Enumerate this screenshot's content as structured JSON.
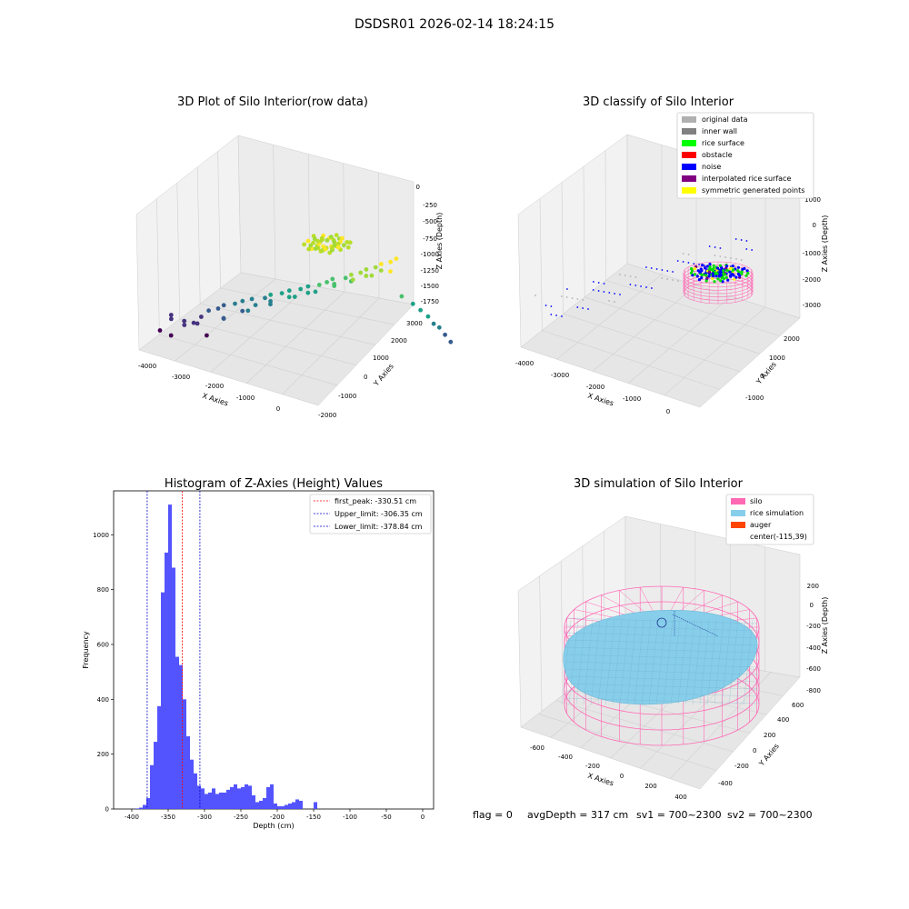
{
  "figure_title": "DSDSR01 2026-02-14 18:24:15",
  "footer": {
    "flag": "flag = 0",
    "avg": "avgDepth = 317 cm",
    "sv1": "sv1 = 700~2300",
    "sv2": "sv2 = 700~2300"
  },
  "colors": {
    "bars": "#4b4bff",
    "first_peak": "#ff0000",
    "limits": "#0000cc",
    "silo": "#ff69b4",
    "rice": "#87ceeb",
    "auger": "#ff4500",
    "pane": "#f2f2f2"
  },
  "chart_data": [
    {
      "type": "scatter",
      "title": "3D Plot of Silo Interior(row data)",
      "xlabel": "X Axies",
      "ylabel": "Y Axies",
      "zlabel": "Z Axies (Depth)",
      "x_ticks": [
        "-4000",
        "-3000",
        "-2000",
        "-1000",
        "0"
      ],
      "y_ticks": [
        "-2000",
        "-1000",
        "0",
        "1000",
        "2000",
        "3000"
      ],
      "z_ticks": [
        "0",
        "-250",
        "-500",
        "-750",
        "-1000",
        "-1250",
        "-1500",
        "-1750"
      ],
      "colormap": "viridis",
      "points": [
        [
          -4150,
          -1200,
          -1700
        ],
        [
          -4000,
          -900,
          -1550
        ],
        [
          -3900,
          -1100,
          -1450
        ],
        [
          -3700,
          -800,
          -1600
        ],
        [
          -3600,
          -1000,
          -1500
        ],
        [
          -3500,
          -700,
          -1550
        ],
        [
          -3350,
          -600,
          -1450
        ],
        [
          -3200,
          -500,
          -1350
        ],
        [
          -3100,
          -800,
          -1650
        ],
        [
          -3000,
          -400,
          -1300
        ],
        [
          -2900,
          -300,
          -1250
        ],
        [
          -2800,
          -500,
          -1400
        ],
        [
          -2650,
          -200,
          -1200
        ],
        [
          -2500,
          -100,
          -1150
        ],
        [
          -2400,
          -300,
          -1250
        ],
        [
          -2300,
          0,
          -1100
        ],
        [
          -2150,
          -100,
          -1150
        ],
        [
          -2000,
          100,
          -1050
        ],
        [
          -1900,
          200,
          -1000
        ],
        [
          -1800,
          0,
          -1050
        ],
        [
          -1650,
          300,
          -950
        ],
        [
          -1500,
          400,
          -900
        ],
        [
          -1400,
          200,
          -950
        ],
        [
          -1250,
          500,
          -850
        ],
        [
          -1100,
          600,
          -800
        ],
        [
          -1000,
          400,
          -850
        ],
        [
          -850,
          700,
          -750
        ],
        [
          -700,
          800,
          -700
        ],
        [
          -600,
          900,
          -650
        ],
        [
          -450,
          700,
          -700
        ],
        [
          -300,
          1000,
          -600
        ],
        [
          -200,
          1100,
          -550
        ],
        [
          -100,
          900,
          -600
        ],
        [
          0,
          1200,
          -500
        ],
        [
          100,
          1300,
          -450
        ],
        [
          200,
          1100,
          -500
        ],
        [
          300,
          1400,
          -400
        ],
        [
          400,
          1500,
          -350
        ],
        [
          500,
          1300,
          -400
        ],
        [
          600,
          1600,
          -300
        ],
        [
          700,
          1700,
          -250
        ],
        [
          -3800,
          -1300,
          -1700
        ],
        [
          -3300,
          -900,
          -1500
        ],
        [
          -2700,
          -700,
          -1350
        ],
        [
          -2200,
          -400,
          -1200
        ],
        [
          -1700,
          -200,
          -1050
        ],
        [
          -1200,
          100,
          -900
        ],
        [
          -800,
          400,
          -800
        ],
        [
          -400,
          600,
          -650
        ],
        [
          0,
          800,
          -550
        ],
        [
          400,
          1000,
          -450
        ],
        [
          800,
          1200,
          -350
        ],
        [
          1000,
          1400,
          -700
        ],
        [
          1200,
          1600,
          -800
        ],
        [
          1300,
          1800,
          -900
        ],
        [
          1400,
          2000,
          -1000
        ],
        [
          1500,
          2100,
          -1100
        ],
        [
          1600,
          2200,
          -1150
        ],
        [
          1700,
          2300,
          -1250
        ],
        [
          1800,
          2400,
          -1350
        ]
      ]
    },
    {
      "type": "scatter",
      "title": "3D classify of Silo Interior",
      "xlabel": "X Axies",
      "ylabel": "Y Axies",
      "zlabel": "Z Axies (Depth)",
      "x_ticks": [
        "-4000",
        "-3000",
        "-2000",
        "-1000",
        "0"
      ],
      "y_ticks": [
        "-1000",
        "0",
        "1000",
        "2000"
      ],
      "z_ticks": [
        "1000",
        "0",
        "-1000",
        "-2000",
        "-3000"
      ],
      "legend": [
        {
          "name": "original data",
          "color": "#b0b0b0"
        },
        {
          "name": "inner wall",
          "color": "#808080"
        },
        {
          "name": "rice surface",
          "color": "#00ff00"
        },
        {
          "name": "obstacle",
          "color": "#ff0000"
        },
        {
          "name": "noise",
          "color": "#0000ff"
        },
        {
          "name": "interpolated rice surface",
          "color": "#800080"
        },
        {
          "name": "symmetric generated points",
          "color": "#ffff00"
        }
      ]
    },
    {
      "type": "bar",
      "title": "Histogram of Z-Axies (Height) Values",
      "xlabel": "Depth (cm)",
      "ylabel": "Frequency",
      "xlim": [
        -425,
        15
      ],
      "ylim": [
        0,
        1160
      ],
      "x_ticks": [
        -400,
        -350,
        -300,
        -250,
        -200,
        -150,
        -100,
        -50,
        0
      ],
      "y_ticks": [
        0,
        200,
        400,
        600,
        800,
        1000
      ],
      "bin_start": -395,
      "bin_width": 5,
      "values": [
        2,
        5,
        15,
        40,
        160,
        245,
        375,
        790,
        935,
        1110,
        880,
        555,
        525,
        400,
        265,
        180,
        130,
        85,
        75,
        55,
        60,
        75,
        55,
        60,
        60,
        70,
        80,
        90,
        75,
        80,
        90,
        85,
        50,
        25,
        30,
        40,
        80,
        90,
        20,
        10,
        10,
        15,
        20,
        25,
        35,
        30,
        0,
        0,
        0,
        25
      ],
      "vlines": [
        {
          "name": "first_peak: -330.51 cm",
          "x": -330.51,
          "color": "#ff0000"
        },
        {
          "name": "Upper_limit: -306.35 cm",
          "x": -306.35,
          "color": "#0000cc"
        },
        {
          "name": "Lower_limit: -378.84 cm",
          "x": -378.84,
          "color": "#0000cc"
        }
      ]
    },
    {
      "type": "surface",
      "title": "3D simulation of Silo Interior",
      "xlabel": "X Axies",
      "ylabel": "Y Axies",
      "zlabel": "Z Axies (Depth)",
      "x_ticks": [
        "-600",
        "-400",
        "-200",
        "0",
        "200",
        "400"
      ],
      "y_ticks": [
        "-400",
        "-200",
        "0",
        "200",
        "400",
        "600"
      ],
      "z_ticks": [
        "200",
        "0",
        "-200",
        "-400",
        "-600",
        "-800"
      ],
      "legend": [
        {
          "name": "silo",
          "color": "#ff69b4"
        },
        {
          "name": "rice simulation",
          "color": "#87ceeb"
        },
        {
          "name": "auger",
          "color": "#ff4500"
        },
        {
          "name": "center(-115,39)",
          "color": ""
        }
      ]
    }
  ]
}
